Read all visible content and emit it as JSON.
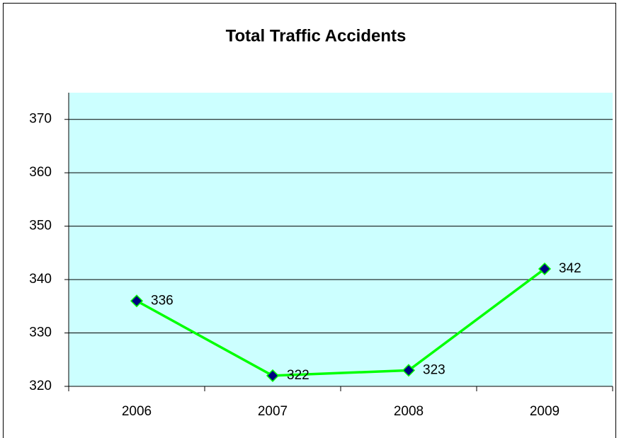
{
  "chart_data": {
    "type": "line",
    "title": "Total Traffic Accidents",
    "categories": [
      "2006",
      "2007",
      "2008",
      "2009"
    ],
    "series": [
      {
        "name": "Total Traffic Accidents",
        "color": "#00ff00",
        "marker_color": "#000080",
        "values": [
          336,
          322,
          323,
          342
        ]
      }
    ],
    "ylim": [
      320,
      375
    ],
    "yticks": [
      320,
      330,
      340,
      350,
      360,
      370
    ],
    "grid": true,
    "data_labels": true,
    "plot_background": "#ccffff"
  }
}
